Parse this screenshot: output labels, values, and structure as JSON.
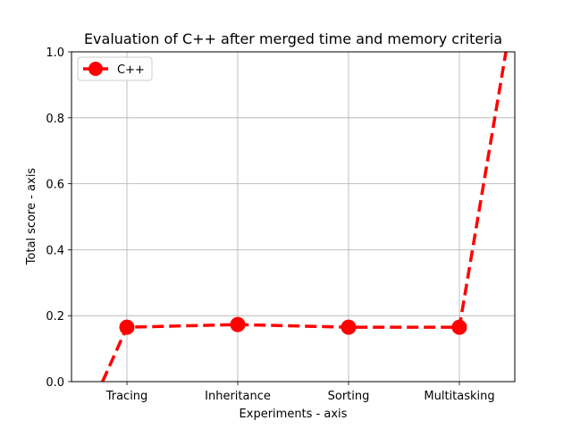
{
  "chart_data": {
    "type": "line",
    "title": "Evaluation of C++ after merged time and memory criteria",
    "xlabel": "Experiments - axis",
    "ylabel": "Total score - axis",
    "categories": [
      "Tracing",
      "Inheritance",
      "Sorting",
      "Multitasking"
    ],
    "ylim": [
      0,
      1.0
    ],
    "yticks": [
      "0.0",
      "0.2",
      "0.4",
      "0.6",
      "0.8",
      "1.0"
    ],
    "grid": true,
    "legend_position": "top-left",
    "series": [
      {
        "name": "C++",
        "color": "#ff0000",
        "line_style": "dashed",
        "marker": "circle",
        "values": [
          0.165,
          0.173,
          0.165,
          0.165
        ],
        "extension_before": {
          "x_offset": -0.22,
          "y": 0.0
        },
        "extension_after": {
          "x_offset": 0.42,
          "y": 1.0
        }
      }
    ]
  }
}
